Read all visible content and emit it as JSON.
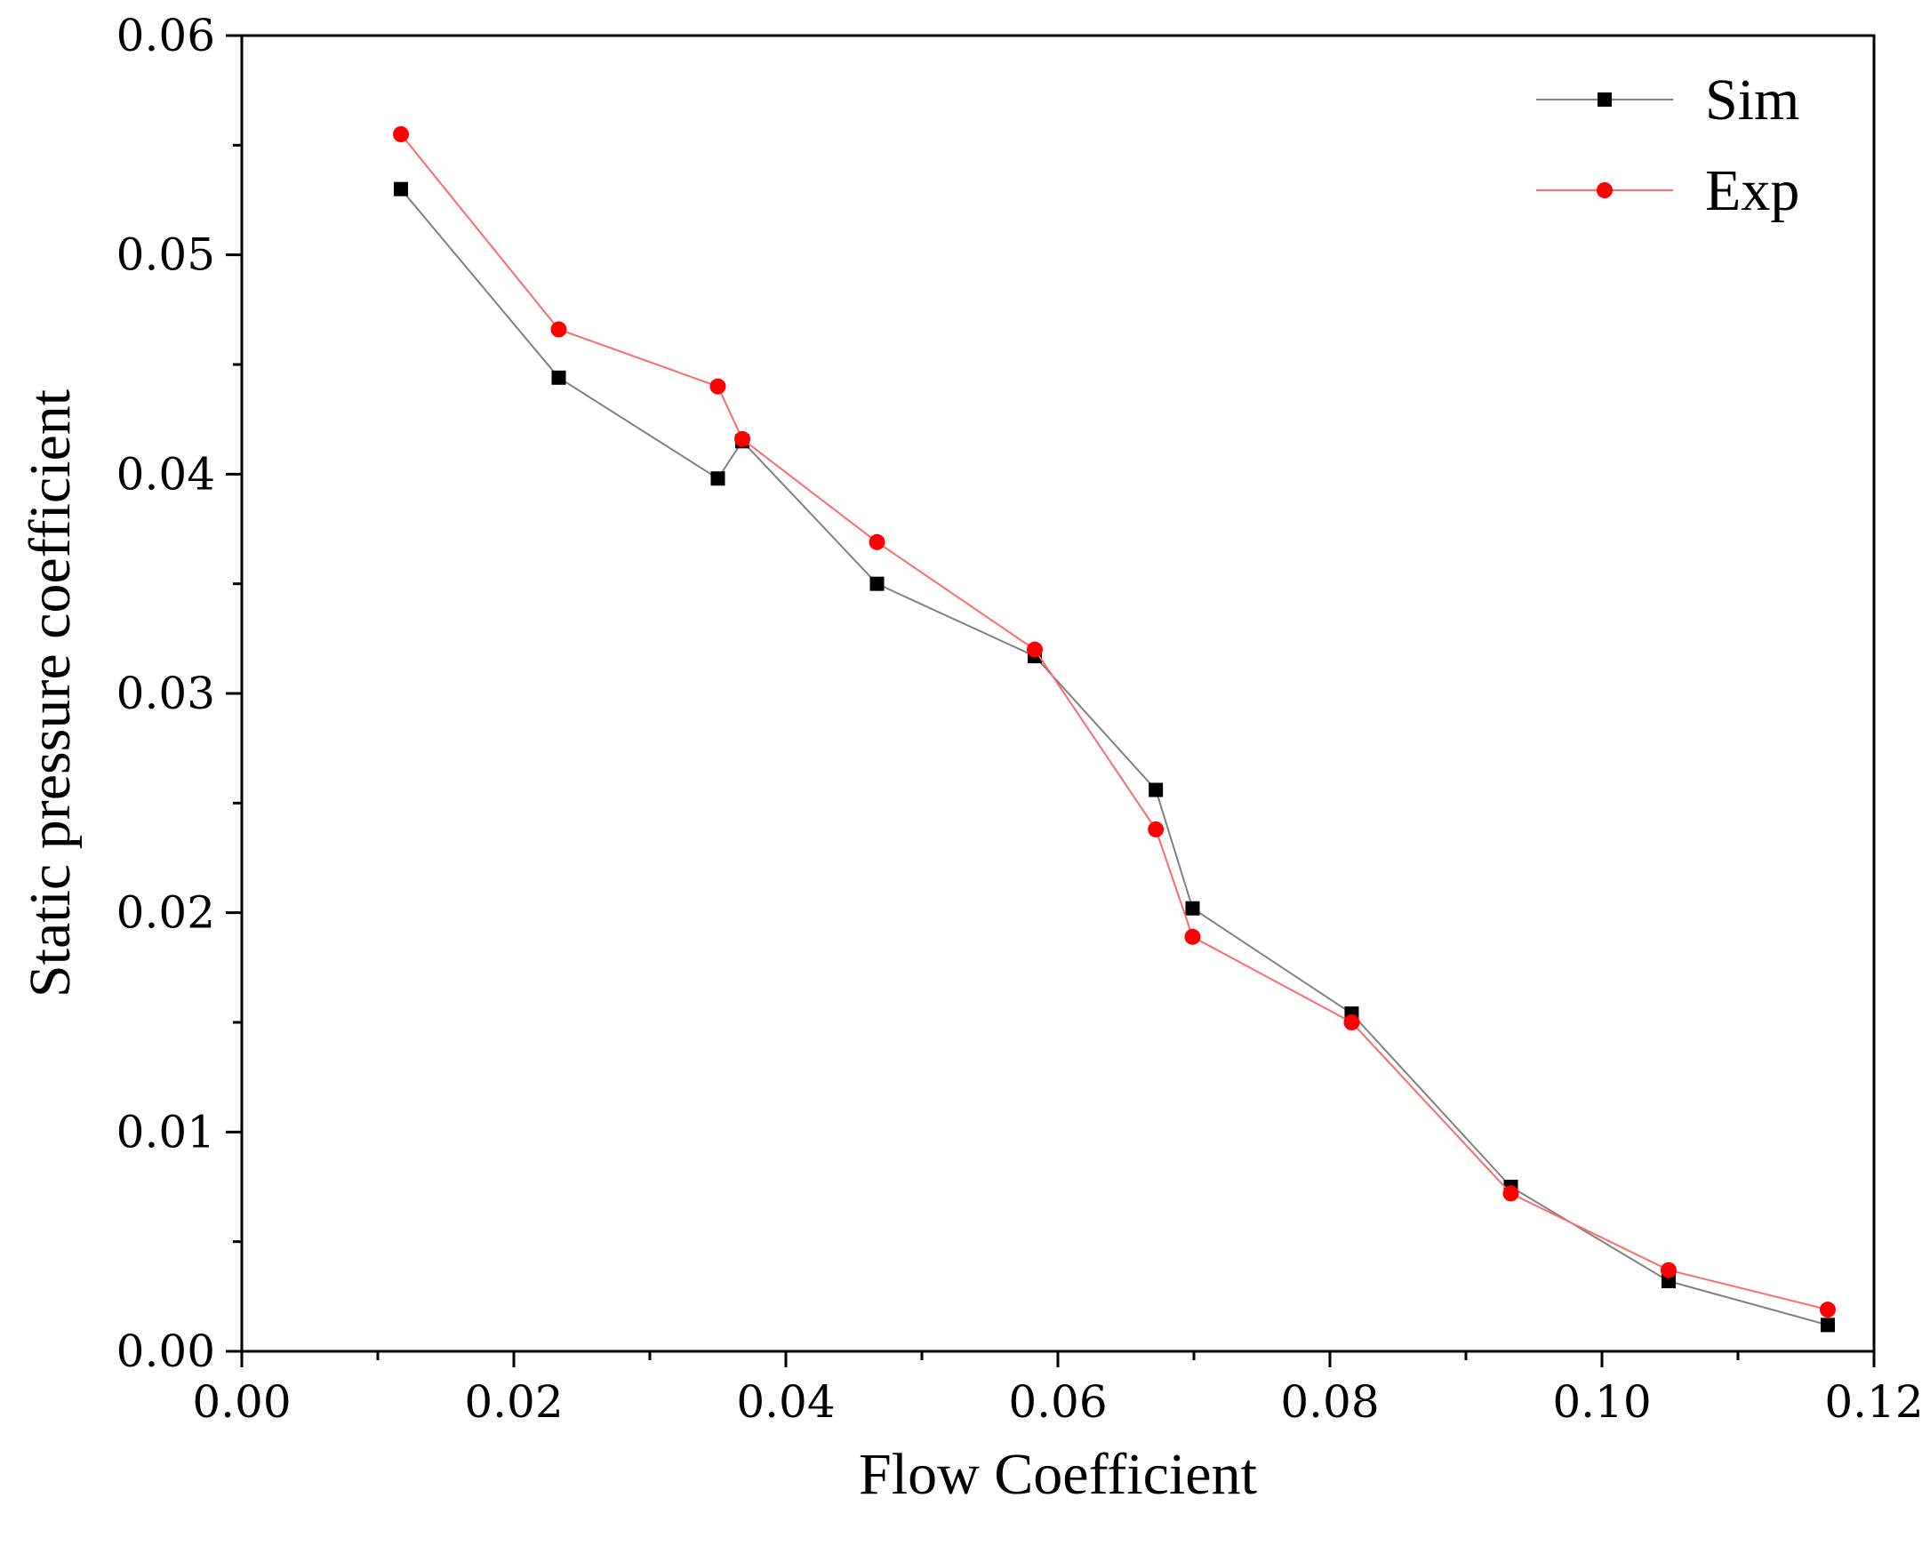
{
  "chart_data": {
    "type": "line",
    "xlabel": "Flow Coefficient",
    "ylabel": "Static pressure coefficient",
    "xlim": [
      0.0,
      0.12
    ],
    "ylim": [
      0.0,
      0.06
    ],
    "x_ticks": [
      "0.00",
      "0.02",
      "0.04",
      "0.06",
      "0.08",
      "0.10",
      "0.12"
    ],
    "y_ticks": [
      "0.00",
      "0.01",
      "0.02",
      "0.03",
      "0.04",
      "0.05",
      "0.06"
    ],
    "grid": false,
    "legend_position": "top-right",
    "series": [
      {
        "name": "Sim",
        "color": "#000000",
        "line_color": "#808080",
        "marker": "square",
        "points": [
          [
            0.0117,
            0.053
          ],
          [
            0.0233,
            0.0444
          ],
          [
            0.035,
            0.0398
          ],
          [
            0.0368,
            0.0415
          ],
          [
            0.0467,
            0.035
          ],
          [
            0.0583,
            0.0317
          ],
          [
            0.0672,
            0.0256
          ],
          [
            0.0699,
            0.0202
          ],
          [
            0.0816,
            0.0154
          ],
          [
            0.0933,
            0.0075
          ],
          [
            0.1049,
            0.0032
          ],
          [
            0.1166,
            0.0012
          ]
        ]
      },
      {
        "name": "Exp",
        "color": "#ff0000",
        "line_color": "#ff6a6a",
        "marker": "circle",
        "points": [
          [
            0.0117,
            0.0555
          ],
          [
            0.0233,
            0.0466
          ],
          [
            0.035,
            0.044
          ],
          [
            0.0368,
            0.0416
          ],
          [
            0.0467,
            0.0369
          ],
          [
            0.0583,
            0.032
          ],
          [
            0.0672,
            0.0238
          ],
          [
            0.0699,
            0.0189
          ],
          [
            0.0816,
            0.015
          ],
          [
            0.0933,
            0.0072
          ],
          [
            0.1049,
            0.0037
          ],
          [
            0.1166,
            0.0019
          ]
        ]
      }
    ]
  }
}
